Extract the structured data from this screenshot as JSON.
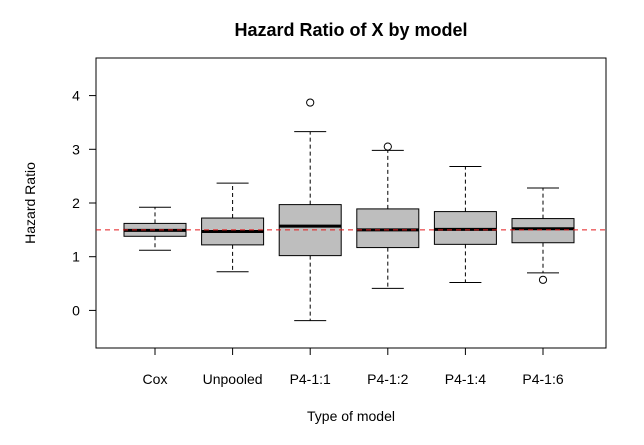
{
  "chart_data": {
    "type": "boxplot",
    "title": "Hazard Ratio of X by model",
    "xlabel": "Type of model",
    "ylabel": "Hazard Ratio",
    "ylim": [
      -0.7,
      4.7
    ],
    "yticks": [
      0,
      1,
      2,
      3,
      4
    ],
    "reference_line": {
      "y": 1.5,
      "color": "#e41a1c",
      "style": "dashed"
    },
    "box_color": "#bebebe",
    "categories": [
      "Cox",
      "Unpooled",
      "P4-1:1",
      "P4-1:2",
      "P4-1:4",
      "P4-1:6"
    ],
    "boxes": [
      {
        "name": "Cox",
        "whisker_low": 1.12,
        "q1": 1.38,
        "median": 1.49,
        "q3": 1.62,
        "whisker_high": 1.92,
        "outliers": []
      },
      {
        "name": "Unpooled",
        "whisker_low": 0.72,
        "q1": 1.22,
        "median": 1.47,
        "q3": 1.72,
        "whisker_high": 2.37,
        "outliers": []
      },
      {
        "name": "P4-1:1",
        "whisker_low": -0.19,
        "q1": 1.02,
        "median": 1.57,
        "q3": 1.97,
        "whisker_high": 3.33,
        "outliers": [
          3.87
        ]
      },
      {
        "name": "P4-1:2",
        "whisker_low": 0.41,
        "q1": 1.17,
        "median": 1.5,
        "q3": 1.89,
        "whisker_high": 2.98,
        "outliers": [
          3.05
        ]
      },
      {
        "name": "P4-1:4",
        "whisker_low": 0.52,
        "q1": 1.23,
        "median": 1.51,
        "q3": 1.84,
        "whisker_high": 2.68,
        "outliers": []
      },
      {
        "name": "P4-1:6",
        "whisker_low": 0.7,
        "q1": 1.26,
        "median": 1.52,
        "q3": 1.71,
        "whisker_high": 2.28,
        "outliers": [
          0.57
        ]
      }
    ]
  }
}
